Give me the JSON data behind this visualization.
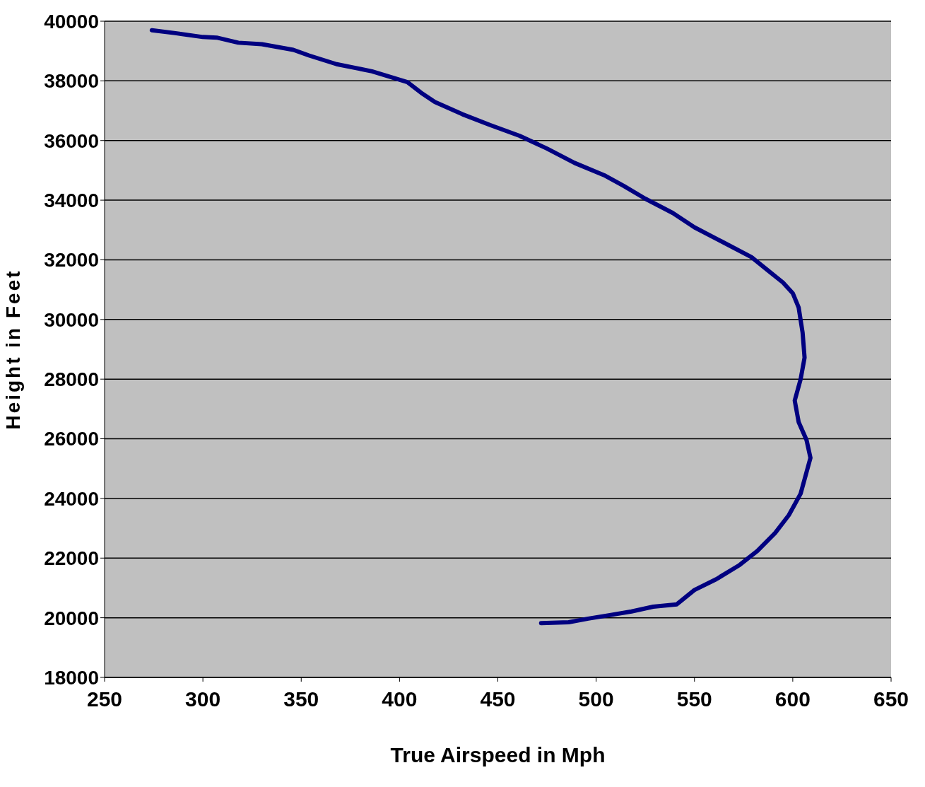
{
  "chart_data": {
    "type": "line",
    "xlabel": "True Airspeed in Mph",
    "ylabel": "Height in Feet",
    "x": [
      274,
      286,
      300,
      307,
      318,
      330,
      346,
      354,
      368,
      386,
      404,
      411,
      418,
      432,
      446,
      461,
      475,
      489,
      504,
      514,
      525,
      539,
      550,
      564,
      579,
      588,
      595,
      600,
      603,
      605,
      606,
      604,
      601,
      603,
      607,
      609,
      607,
      604,
      598,
      591,
      582,
      573,
      561,
      550,
      541,
      529,
      518,
      507,
      496,
      486,
      472
    ],
    "series": [
      {
        "color": "#000080",
        "values": [
          39700,
          39600,
          39470,
          39450,
          39280,
          39230,
          39040,
          38850,
          38560,
          38320,
          37960,
          37600,
          37290,
          36880,
          36520,
          36160,
          35730,
          35250,
          34840,
          34480,
          34050,
          33570,
          33090,
          32610,
          32090,
          31610,
          31240,
          30880,
          30400,
          29560,
          28720,
          28000,
          27280,
          26560,
          25960,
          25360,
          24880,
          24160,
          23440,
          22840,
          22240,
          21770,
          21290,
          20930,
          20450,
          20370,
          20210,
          20090,
          19970,
          19850,
          19820
        ]
      }
    ],
    "xlim": [
      250,
      650
    ],
    "xticks": [
      250,
      300,
      350,
      400,
      450,
      500,
      550,
      600,
      650
    ],
    "ylim": [
      18000,
      40000
    ],
    "yticks": [
      18000,
      20000,
      22000,
      24000,
      26000,
      28000,
      30000,
      32000,
      34000,
      36000,
      38000,
      40000
    ],
    "grid": "y",
    "legend": false,
    "marker": "none",
    "line_style": "solid"
  }
}
